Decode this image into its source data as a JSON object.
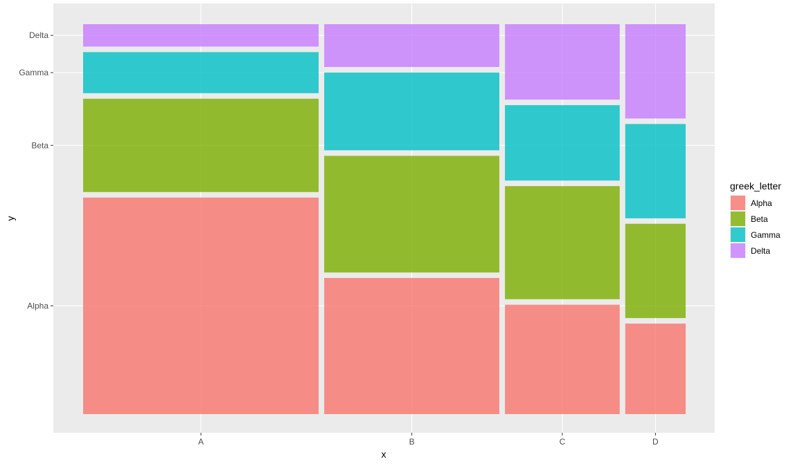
{
  "chart_data": {
    "type": "mosaic",
    "xlabel": "x",
    "ylabel": "y",
    "x_categories": [
      "A",
      "B",
      "C",
      "D"
    ],
    "y_categories": [
      "Alpha",
      "Beta",
      "Gamma",
      "Delta"
    ],
    "column_widths": [
      0.39,
      0.29,
      0.19,
      0.1
    ],
    "proportions": {
      "A": {
        "Alpha": 0.58,
        "Beta": 0.25,
        "Gamma": 0.11,
        "Delta": 0.06
      },
      "B": {
        "Alpha": 0.35,
        "Beta": 0.3,
        "Gamma": 0.2,
        "Delta": 0.11
      },
      "C": {
        "Alpha": 0.29,
        "Beta": 0.3,
        "Gamma": 0.2,
        "Delta": 0.2
      },
      "D": {
        "Alpha": 0.24,
        "Beta": 0.25,
        "Gamma": 0.25,
        "Delta": 0.25
      }
    },
    "legend": {
      "title": "greek_letter",
      "position": "right",
      "items": [
        {
          "label": "Alpha",
          "color": "#F8766D"
        },
        {
          "label": "Beta",
          "color": "#7CAE00"
        },
        {
          "label": "Gamma",
          "color": "#00BFC4"
        },
        {
          "label": "Delta",
          "color": "#C77CFF"
        }
      ]
    },
    "fill_alpha": 0.8,
    "panel_background": "#EBEBEB",
    "grid": true
  }
}
